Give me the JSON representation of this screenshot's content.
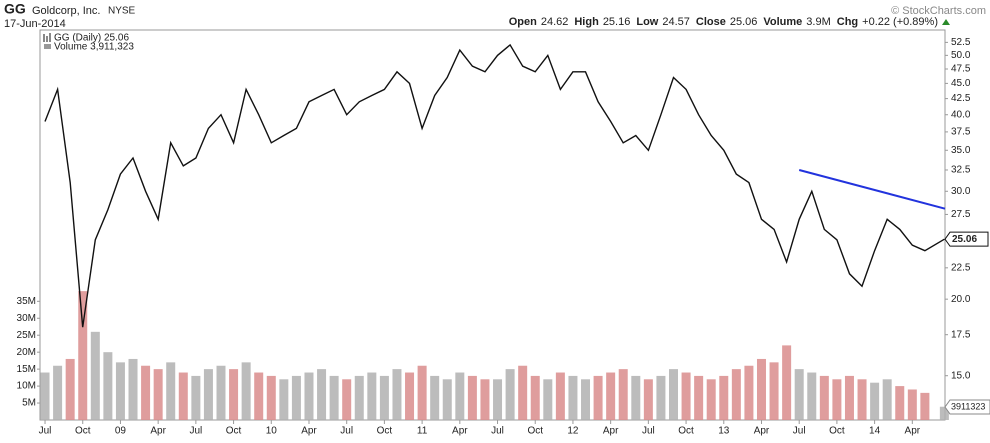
{
  "chart_data": {
    "type": "line",
    "symbol": "GG",
    "company": "Goldcorp, Inc.",
    "exchange": "NYSE",
    "date": "17-Jun-2014",
    "copyright": "© StockCharts.com",
    "summary": [
      {
        "label": "Open",
        "value": 24.62
      },
      {
        "label": "High",
        "value": 25.16
      },
      {
        "label": "Low",
        "value": 24.57
      },
      {
        "label": "Close",
        "value": 25.06
      },
      {
        "label": "Volume",
        "value": 3900000,
        "value_label": "3.9M"
      },
      {
        "label": "Chg",
        "value": 0.22,
        "value_label": "+0.22 (+0.89%)"
      }
    ],
    "legend_price": "GG (Daily) 25.06",
    "legend_volume": "Volume 3,911,323",
    "price_tag": 25.06,
    "volume_tag": 3911323,
    "x": [
      0,
      1,
      2,
      3,
      4,
      5,
      6,
      7,
      8,
      9,
      10,
      11,
      12,
      13,
      14,
      15,
      16,
      17,
      18,
      19,
      20,
      21,
      22,
      23,
      24,
      25,
      26,
      27,
      28,
      29,
      30,
      31,
      32,
      33,
      34,
      35,
      36,
      37,
      38,
      39,
      40,
      41,
      42,
      43,
      44,
      45,
      46,
      47,
      48,
      49,
      50,
      51,
      52,
      53,
      54,
      55,
      56,
      57,
      58,
      59,
      60,
      61,
      62,
      63,
      64,
      65,
      66,
      67,
      68,
      69,
      70,
      71.55
    ],
    "xlim": [
      -0.4,
      71.6
    ],
    "xticks": [
      {
        "value": 0,
        "label": "Jul"
      },
      {
        "value": 3,
        "label": "Oct"
      },
      {
        "value": 6,
        "label": "09"
      },
      {
        "value": 9,
        "label": "Apr"
      },
      {
        "value": 12,
        "label": "Jul"
      },
      {
        "value": 15,
        "label": "Oct"
      },
      {
        "value": 18,
        "label": "10"
      },
      {
        "value": 21,
        "label": "Apr"
      },
      {
        "value": 24,
        "label": "Jul"
      },
      {
        "value": 27,
        "label": "Oct"
      },
      {
        "value": 30,
        "label": "11"
      },
      {
        "value": 33,
        "label": "Apr"
      },
      {
        "value": 36,
        "label": "Jul"
      },
      {
        "value": 39,
        "label": "Oct"
      },
      {
        "value": 42,
        "label": "12"
      },
      {
        "value": 45,
        "label": "Apr"
      },
      {
        "value": 48,
        "label": "Jul"
      },
      {
        "value": 51,
        "label": "Oct"
      },
      {
        "value": 54,
        "label": "13"
      },
      {
        "value": 57,
        "label": "Apr"
      },
      {
        "value": 60,
        "label": "Jul"
      },
      {
        "value": 63,
        "label": "Oct"
      },
      {
        "value": 66,
        "label": "14"
      },
      {
        "value": 69,
        "label": "Apr"
      }
    ],
    "series": [
      {
        "name": "GG (Daily)",
        "axis": "y2",
        "color": "#111111",
        "values": [
          39,
          44,
          31,
          18,
          25,
          28,
          32,
          34,
          30,
          27,
          36,
          33,
          34,
          38,
          40,
          36,
          44,
          40,
          36,
          37,
          38,
          42,
          43,
          44,
          40,
          42,
          43,
          44,
          47,
          45,
          38,
          43,
          46,
          51,
          48,
          47,
          50,
          52,
          48,
          47,
          50,
          44,
          47,
          47,
          42,
          39,
          36,
          37,
          35,
          40,
          46,
          44,
          40,
          37,
          35,
          32,
          31,
          27,
          26,
          23,
          27,
          30,
          26,
          25,
          22,
          21,
          24,
          27,
          26,
          24.5,
          24,
          25.06
        ]
      },
      {
        "name": "Volume",
        "axis": "y",
        "color": "#d98c8c",
        "values": [
          14000000,
          16000000,
          18000000,
          38000000,
          26000000,
          20000000,
          17000000,
          18000000,
          16000000,
          15000000,
          17000000,
          14000000,
          13000000,
          15000000,
          16000000,
          15000000,
          17000000,
          14000000,
          13000000,
          12000000,
          13000000,
          14000000,
          15000000,
          13000000,
          12000000,
          13000000,
          14000000,
          13000000,
          15000000,
          14000000,
          16000000,
          13000000,
          12000000,
          14000000,
          13000000,
          12000000,
          12000000,
          15000000,
          16000000,
          13000000,
          12000000,
          14000000,
          13000000,
          12000000,
          13000000,
          14000000,
          15000000,
          13000000,
          12000000,
          13000000,
          15000000,
          14000000,
          13000000,
          12000000,
          13000000,
          15000000,
          16000000,
          18000000,
          17000000,
          22000000,
          15000000,
          14000000,
          13000000,
          12000000,
          13000000,
          12000000,
          11000000,
          12000000,
          10000000,
          9000000,
          8000000,
          3911323
        ]
      }
    ],
    "trendline": {
      "x": [
        60,
        71.6
      ],
      "values": [
        32.5,
        28.1
      ],
      "color": "#2233dd"
    },
    "ylim": [
      0,
      115000000
    ],
    "yticks": [
      {
        "value": 5000000,
        "label": "5M"
      },
      {
        "value": 10000000,
        "label": "10M"
      },
      {
        "value": 15000000,
        "label": "15M"
      },
      {
        "value": 20000000,
        "label": "20M"
      },
      {
        "value": 25000000,
        "label": "25M"
      },
      {
        "value": 30000000,
        "label": "30M"
      },
      {
        "value": 35000000,
        "label": "35M"
      }
    ],
    "y2lim": [
      12.7,
      55
    ],
    "y2log": true,
    "y2ticks": [
      {
        "value": 15,
        "label": "15.0"
      },
      {
        "value": 17.5,
        "label": "17.5"
      },
      {
        "value": 20,
        "label": "20.0"
      },
      {
        "value": 22.5,
        "label": "22.5"
      },
      {
        "value": 25,
        "label": "25.0"
      },
      {
        "value": 27.5,
        "label": "27.5"
      },
      {
        "value": 30,
        "label": "30.0"
      },
      {
        "value": 32.5,
        "label": "32.5"
      },
      {
        "value": 35,
        "label": "35.0"
      },
      {
        "value": 37.5,
        "label": "37.5"
      },
      {
        "value": 40,
        "label": "40.0"
      },
      {
        "value": 42.5,
        "label": "42.5"
      },
      {
        "value": 45,
        "label": "45.0"
      },
      {
        "value": 47.5,
        "label": "47.5"
      },
      {
        "value": 50,
        "label": "50.0"
      },
      {
        "value": 52.5,
        "label": "52.5"
      }
    ],
    "grid": false
  }
}
